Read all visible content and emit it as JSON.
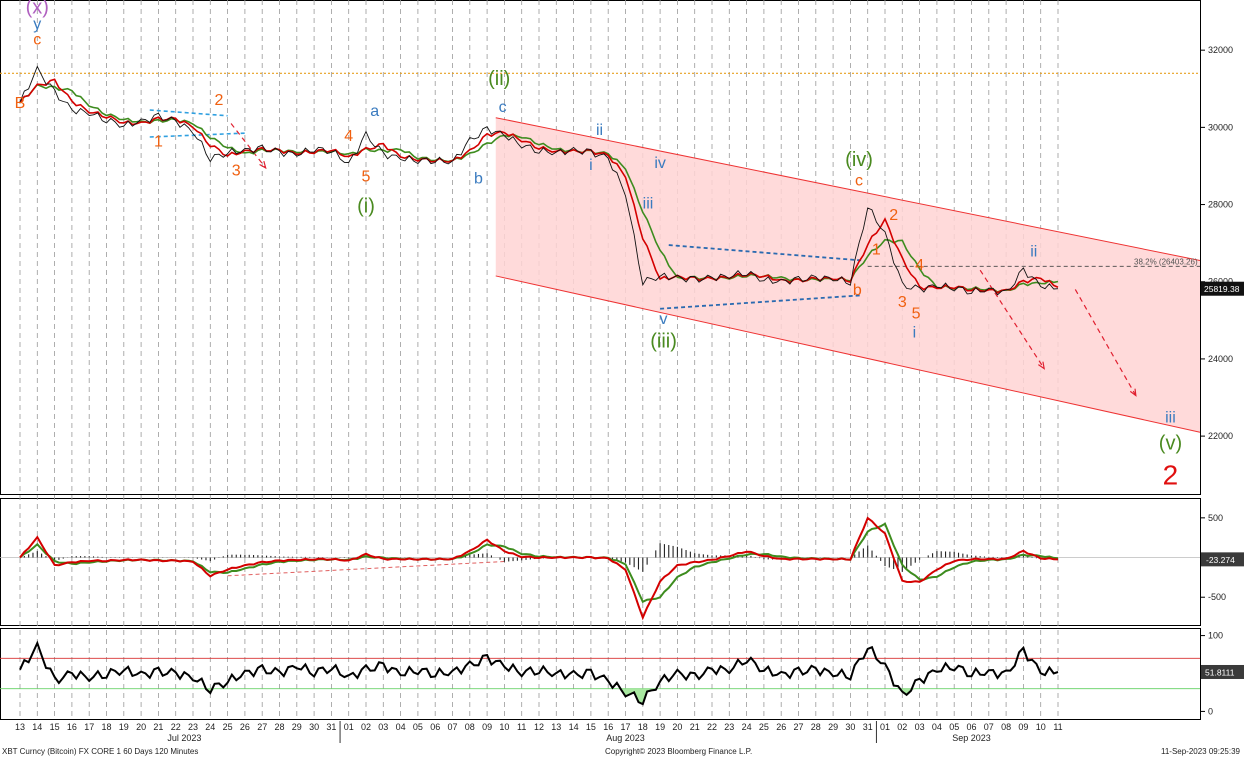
{
  "footer": {
    "left": "XBT Curncy (Bitcoin) FX CORE 1 60 Days 120 Minutes",
    "center": "Copyright© 2023 Bloomberg Finance L.P.",
    "right": "11-Sep-2023 09:25:39"
  },
  "colors": {
    "price": "#111111",
    "fast_ma": "#d40000",
    "slow_ma": "#3d8c1e",
    "channel_fill": "#ffd4d4",
    "channel_line": "#ee3333",
    "resistance": "#e8a020",
    "wave_orange": "#f06010",
    "wave_blue": "#3a7bbf",
    "wave_green": "#4a8a20",
    "wave_purple": "#b060c0",
    "wave_red": "#e01010",
    "rsi_upper": "#d83030",
    "rsi_lower": "#60d060",
    "rsi_fill": "#a8e8a0",
    "price_tag_bg": "#111111"
  },
  "chart_data": [
    {
      "type": "line",
      "panel": "price",
      "x_date_labels": [
        "13",
        "14",
        "15",
        "16",
        "17",
        "18",
        "19",
        "20",
        "21",
        "22",
        "23",
        "24",
        "25",
        "26",
        "27",
        "28",
        "29",
        "30",
        "31",
        "01",
        "02",
        "03",
        "04",
        "05",
        "06",
        "07",
        "08",
        "09",
        "10",
        "11",
        "12",
        "13",
        "14",
        "15",
        "16",
        "17",
        "18",
        "19",
        "20",
        "21",
        "22",
        "23",
        "24",
        "25",
        "26",
        "27",
        "28",
        "29",
        "30",
        "31",
        "01",
        "02",
        "03",
        "04",
        "05",
        "06",
        "07",
        "08",
        "09",
        "10",
        "11"
      ],
      "month_labels": [
        "Jul 2023",
        "Aug 2023",
        "Sep 2023"
      ],
      "y_ticks": [
        22000,
        24000,
        26000,
        28000,
        30000,
        32000
      ],
      "ylim": [
        20500,
        33300
      ],
      "series": [
        {
          "values": [
            30650,
            31500,
            30900,
            30450,
            30380,
            30200,
            30050,
            30150,
            30280,
            30150,
            29900,
            29200,
            29350,
            29400,
            29450,
            29350,
            29300,
            29450,
            29400,
            29050,
            29800,
            29300,
            29200,
            29150,
            29150,
            29100,
            29650,
            29950,
            29800,
            29550,
            29400,
            29350,
            29400,
            29350,
            29200,
            28300,
            26000,
            26150,
            26100,
            26050,
            26100,
            26150,
            26250,
            26050,
            26000,
            26050,
            26100,
            26080,
            26000,
            27950,
            27250,
            25900,
            25800,
            25900,
            25850,
            25750,
            25800,
            25700,
            26300,
            25900,
            25819
          ]
        }
      ],
      "last_price": "25819.38",
      "fib_label": "38.2% (26403.26)",
      "resistance_level": 31400,
      "wave_labels": [
        {
          "text": "(x)",
          "i": 1,
          "v": 32950,
          "color": "wave_purple"
        },
        {
          "text": "y",
          "i": 1,
          "v": 32550,
          "color": "wave_blue"
        },
        {
          "text": "c",
          "i": 1,
          "v": 32150,
          "color": "wave_orange"
        },
        {
          "text": "B",
          "i": 0,
          "v": 30500,
          "color": "wave_orange"
        },
        {
          "text": "1",
          "i": 8,
          "v": 29500,
          "color": "wave_orange"
        },
        {
          "text": "2",
          "i": 11.5,
          "v": 30580,
          "color": "wave_orange"
        },
        {
          "text": "3",
          "i": 12.5,
          "v": 28750,
          "color": "wave_orange"
        },
        {
          "text": "4",
          "i": 19,
          "v": 29650,
          "color": "wave_orange"
        },
        {
          "text": "a",
          "i": 20.5,
          "v": 30300,
          "color": "wave_blue"
        },
        {
          "text": "5",
          "i": 20,
          "v": 28600,
          "color": "wave_orange"
        },
        {
          "text": "(i)",
          "i": 20,
          "v": 27800,
          "color": "wave_green"
        },
        {
          "text": "b",
          "i": 26.5,
          "v": 28550,
          "color": "wave_blue"
        },
        {
          "text": "(ii)",
          "i": 27.7,
          "v": 31100,
          "color": "wave_green"
        },
        {
          "text": "c",
          "i": 27.9,
          "v": 30400,
          "color": "wave_blue"
        },
        {
          "text": "ii",
          "i": 33.5,
          "v": 29800,
          "color": "wave_blue"
        },
        {
          "text": "i",
          "i": 33,
          "v": 28900,
          "color": "wave_blue"
        },
        {
          "text": "iv",
          "i": 37,
          "v": 28950,
          "color": "wave_blue"
        },
        {
          "text": "iii",
          "i": 36.3,
          "v": 27900,
          "color": "wave_blue"
        },
        {
          "text": "v",
          "i": 37.2,
          "v": 24900,
          "color": "wave_blue"
        },
        {
          "text": "(iii)",
          "i": 37.2,
          "v": 24300,
          "color": "wave_green"
        },
        {
          "text": "b",
          "i": 48.4,
          "v": 25650,
          "color": "wave_orange"
        },
        {
          "text": "(iv)",
          "i": 48.5,
          "v": 29000,
          "color": "wave_green"
        },
        {
          "text": "c",
          "i": 48.5,
          "v": 28500,
          "color": "wave_orange"
        },
        {
          "text": "2",
          "i": 50.5,
          "v": 27600,
          "color": "wave_orange"
        },
        {
          "text": "1",
          "i": 49.5,
          "v": 26700,
          "color": "wave_orange"
        },
        {
          "text": "4",
          "i": 52,
          "v": 26300,
          "color": "wave_orange"
        },
        {
          "text": "3",
          "i": 51,
          "v": 25350,
          "color": "wave_orange"
        },
        {
          "text": "5",
          "i": 51.8,
          "v": 25050,
          "color": "wave_orange"
        },
        {
          "text": "i",
          "i": 51.7,
          "v": 24550,
          "color": "wave_blue"
        },
        {
          "text": "ii",
          "i": 58.6,
          "v": 26650,
          "color": "wave_blue"
        },
        {
          "text": "iii",
          "i": 66.5,
          "v": 22350,
          "color": "wave_blue"
        },
        {
          "text": "(v)",
          "i": 66.5,
          "v": 21650,
          "color": "wave_green"
        },
        {
          "text": "2",
          "i": 66.5,
          "v": 20750,
          "color": "wave_red"
        }
      ]
    },
    {
      "type": "line",
      "panel": "macd",
      "y_ticks": [
        500,
        -500
      ],
      "ylim": [
        -850,
        750
      ],
      "last_value": "-23.274",
      "series": [
        {
          "values": [
            0,
            250,
            -100,
            -60,
            -40,
            -40,
            -30,
            -30,
            -40,
            -40,
            -50,
            -230,
            -150,
            -100,
            -60,
            -40,
            -30,
            -20,
            -20,
            -40,
            40,
            -20,
            -20,
            -20,
            -20,
            -20,
            80,
            220,
            80,
            10,
            0,
            0,
            0,
            0,
            -10,
            -150,
            -750,
            -300,
            -100,
            -60,
            -30,
            20,
            80,
            20,
            -20,
            -20,
            -20,
            -20,
            -20,
            500,
            300,
            -300,
            -310,
            -150,
            -40,
            -20,
            -20,
            -20,
            80,
            -10,
            -23
          ]
        },
        {
          "values": [
            0,
            160,
            -50,
            -80,
            -60,
            -45,
            -35,
            -30,
            -35,
            -40,
            -45,
            -180,
            -190,
            -140,
            -90,
            -55,
            -40,
            -28,
            -22,
            -30,
            10,
            -5,
            -15,
            -20,
            -20,
            -20,
            40,
            160,
            140,
            50,
            15,
            5,
            2,
            0,
            -5,
            -80,
            -550,
            -500,
            -250,
            -120,
            -60,
            -10,
            40,
            45,
            10,
            -10,
            -15,
            -18,
            -20,
            330,
            420,
            -100,
            -280,
            -240,
            -120,
            -50,
            -30,
            -25,
            30,
            20,
            -10
          ]
        }
      ]
    },
    {
      "type": "line",
      "panel": "rsi",
      "y_ticks": [
        100,
        50,
        0
      ],
      "ylim": [
        -10,
        110
      ],
      "upper_band": 70,
      "lower_band": 30,
      "last_value": "51.8111",
      "series": [
        {
          "values": [
            55,
            85,
            40,
            50,
            45,
            50,
            55,
            48,
            52,
            50,
            45,
            30,
            40,
            50,
            55,
            50,
            60,
            52,
            58,
            45,
            55,
            60,
            50,
            55,
            50,
            52,
            60,
            70,
            60,
            52,
            55,
            50,
            48,
            50,
            40,
            25,
            15,
            40,
            50,
            45,
            55,
            55,
            70,
            55,
            48,
            52,
            55,
            50,
            48,
            85,
            60,
            20,
            40,
            55,
            60,
            50,
            52,
            48,
            80,
            52,
            52
          ]
        }
      ]
    }
  ]
}
